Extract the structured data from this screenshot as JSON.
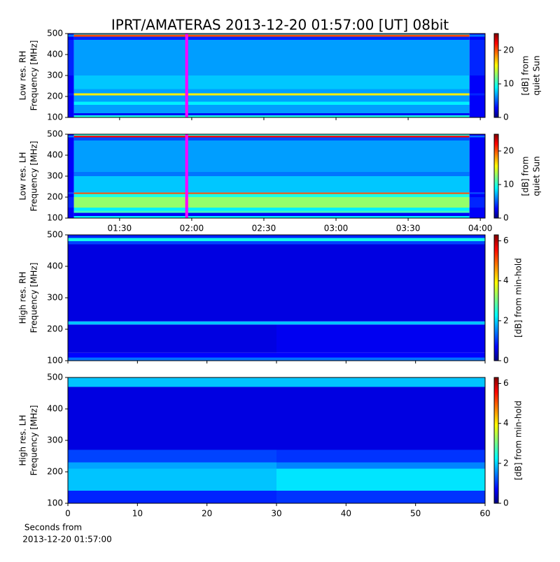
{
  "title": "IPRT/AMATERAS 2013-12-20 01:57:00 [UT]   08bit",
  "chart_data": [
    {
      "type": "heatmap",
      "ylabel": [
        "Low res. RH",
        "Frequency [MHz]"
      ],
      "xlim": [
        68.5,
        242
      ],
      "xticks": [
        90,
        120,
        150,
        180,
        210,
        240
      ],
      "show_xticklabels": false,
      "ylim": [
        100,
        500
      ],
      "yticks": [
        100,
        200,
        300,
        400,
        500
      ],
      "x_edges": [
        68.5,
        71,
        235.5,
        242
      ],
      "y_edges": [
        100,
        110,
        120,
        160,
        175,
        205,
        215,
        235,
        300,
        470,
        485,
        495,
        500
      ],
      "z": [
        [
          3,
          10,
          3
        ],
        [
          3,
          3,
          3
        ],
        [
          3,
          7,
          3
        ],
        [
          3,
          9,
          3
        ],
        [
          3,
          7,
          3
        ],
        [
          4,
          16,
          4
        ],
        [
          3,
          7,
          3
        ],
        [
          3,
          8,
          3
        ],
        [
          4,
          7,
          4
        ],
        [
          3,
          4,
          3
        ],
        [
          6,
          20,
          6
        ],
        [
          3,
          8,
          3
        ]
      ],
      "highlight": {
        "x": [
          117.3,
          118.5
        ],
        "color": "#ff00ff"
      },
      "colorbar_label": [
        "[dB] from",
        "quiet Sun"
      ],
      "clim": [
        0,
        25
      ],
      "cticks": [
        0,
        10,
        20
      ]
    },
    {
      "type": "heatmap",
      "ylabel": [
        "Low res. LH",
        "Frequency [MHz]"
      ],
      "xlim": [
        68.5,
        242
      ],
      "xticks": [
        {
          "value": 90,
          "label": "01:30"
        },
        {
          "value": 120,
          "label": "02:00"
        },
        {
          "value": 150,
          "label": "02:30"
        },
        {
          "value": 180,
          "label": "03:00"
        },
        {
          "value": 210,
          "label": "03:30"
        },
        {
          "value": 240,
          "label": "04:00"
        }
      ],
      "show_xticklabels": true,
      "ylim": [
        100,
        500
      ],
      "yticks": [
        100,
        200,
        300,
        400,
        500
      ],
      "x_edges": [
        68.5,
        71,
        235.5,
        242
      ],
      "y_edges": [
        100,
        110,
        125,
        135,
        150,
        200,
        215,
        222,
        300,
        320,
        470,
        485,
        493,
        500
      ],
      "z": [
        [
          3,
          9,
          3
        ],
        [
          3,
          3,
          3
        ],
        [
          3,
          11,
          3
        ],
        [
          3,
          9,
          3
        ],
        [
          4,
          13,
          4
        ],
        [
          3,
          10,
          3
        ],
        [
          5,
          20,
          5
        ],
        [
          3,
          8,
          3
        ],
        [
          3,
          6,
          3
        ],
        [
          3,
          7,
          3
        ],
        [
          3,
          5,
          3
        ],
        [
          6,
          22,
          6
        ],
        [
          3,
          10,
          3
        ]
      ],
      "highlight": {
        "x": [
          117.3,
          118.5
        ],
        "color": "#ff00ff"
      },
      "colorbar_label": [
        "[dB] from",
        "quiet Sun"
      ],
      "clim": [
        0,
        25
      ],
      "cticks": [
        0,
        10,
        20
      ]
    },
    {
      "type": "heatmap",
      "ylabel": [
        "High res. RH",
        "Frequency [MHz]"
      ],
      "xlim": [
        0,
        60
      ],
      "xticks": [
        0,
        10,
        20,
        30,
        40,
        50,
        60
      ],
      "show_xticklabels": false,
      "ylim": [
        100,
        500
      ],
      "yticks": [
        100,
        200,
        300,
        400,
        500
      ],
      "x_edges": [
        0,
        30,
        60
      ],
      "y_edges": [
        100,
        110,
        125,
        215,
        225,
        470,
        480,
        490,
        500
      ],
      "z": [
        [
          1.5,
          1.5
        ],
        [
          0.8,
          0.8
        ],
        [
          0.6,
          0.7
        ],
        [
          2,
          2
        ],
        [
          0.6,
          0.6
        ],
        [
          1.2,
          1.2
        ],
        [
          2.5,
          2.5
        ],
        [
          1,
          1
        ]
      ],
      "colorbar_label": [
        "[dB] from min-hold"
      ],
      "clim": [
        0,
        6.3
      ],
      "cticks": [
        0,
        2,
        4,
        6
      ]
    },
    {
      "type": "heatmap",
      "ylabel": [
        "High res. LH",
        "Frequency [MHz]"
      ],
      "xlabel": [
        "Seconds from",
        "2013-12-20 01:57:00"
      ],
      "xlim": [
        0,
        60
      ],
      "xticks": [
        0,
        10,
        20,
        30,
        40,
        50,
        60
      ],
      "show_xticklabels": true,
      "ylim": [
        100,
        500
      ],
      "yticks": [
        100,
        200,
        300,
        400,
        500
      ],
      "x_edges": [
        0,
        30,
        60
      ],
      "y_edges": [
        100,
        140,
        210,
        230,
        270,
        470,
        500
      ],
      "z": [
        [
          1,
          1.1
        ],
        [
          2,
          2.2
        ],
        [
          1.8,
          1.6
        ],
        [
          1.2,
          1.1
        ],
        [
          0.6,
          0.6
        ],
        [
          2,
          2
        ]
      ],
      "colorbar_label": [
        "[dB] from min-hold"
      ],
      "clim": [
        0,
        6.3
      ],
      "cticks": [
        0,
        2,
        4,
        6
      ]
    }
  ]
}
